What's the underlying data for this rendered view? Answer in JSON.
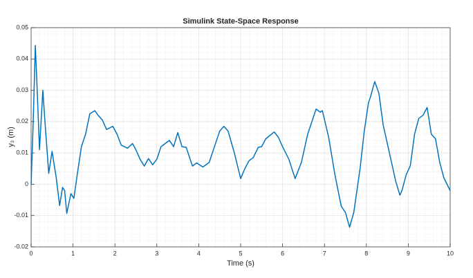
{
  "chart_data": {
    "type": "line",
    "title": "Simulink State-Space Response",
    "xlabel": "Time (s)",
    "ylabel": "y₃ (m)",
    "x": [
      0,
      0.05,
      0.1,
      0.13,
      0.2,
      0.28,
      0.33,
      0.42,
      0.5,
      0.6,
      0.68,
      0.75,
      0.8,
      0.85,
      0.95,
      1.02,
      1.1,
      1.2,
      1.3,
      1.4,
      1.52,
      1.6,
      1.7,
      1.8,
      1.95,
      2.05,
      2.15,
      2.3,
      2.42,
      2.5,
      2.6,
      2.7,
      2.8,
      2.9,
      3.0,
      3.1,
      3.3,
      3.4,
      3.5,
      3.6,
      3.7,
      3.85,
      3.95,
      4.1,
      4.25,
      4.4,
      4.5,
      4.6,
      4.7,
      4.85,
      5.0,
      5.1,
      5.2,
      5.3,
      5.42,
      5.5,
      5.6,
      5.8,
      5.9,
      6.0,
      6.15,
      6.3,
      6.45,
      6.6,
      6.8,
      6.9,
      6.95,
      7.1,
      7.25,
      7.4,
      7.5,
      7.6,
      7.7,
      7.85,
      7.95,
      8.05,
      8.1,
      8.2,
      8.3,
      8.4,
      8.55,
      8.7,
      8.8,
      8.85,
      8.95,
      9.05,
      9.15,
      9.25,
      9.35,
      9.45,
      9.55,
      9.65,
      9.75,
      9.85,
      10
    ],
    "series": [
      {
        "name": "y3",
        "color": "#0072bd",
        "values": [
          0,
          0.02,
          0.0443,
          0.035,
          0.011,
          0.03,
          0.02,
          0.0035,
          0.0105,
          0.002,
          -0.0068,
          -0.001,
          -0.002,
          -0.0093,
          -0.003,
          -0.0045,
          0.003,
          0.012,
          0.016,
          0.0225,
          0.0235,
          0.022,
          0.0205,
          0.0175,
          0.0185,
          0.016,
          0.0125,
          0.0115,
          0.013,
          0.011,
          0.008,
          0.0058,
          0.0082,
          0.0062,
          0.008,
          0.012,
          0.014,
          0.012,
          0.0165,
          0.012,
          0.0118,
          0.0058,
          0.0068,
          0.0055,
          0.007,
          0.013,
          0.017,
          0.0185,
          0.017,
          0.01,
          0.0018,
          0.005,
          0.0075,
          0.0085,
          0.0118,
          0.012,
          0.0145,
          0.0167,
          0.015,
          0.012,
          0.008,
          0.0018,
          0.007,
          0.016,
          0.024,
          0.023,
          0.0235,
          0.015,
          0.003,
          -0.007,
          -0.009,
          -0.0137,
          -0.009,
          0.005,
          0.017,
          0.026,
          0.028,
          0.0328,
          0.029,
          0.019,
          0.01,
          0.001,
          -0.0035,
          -0.002,
          0.003,
          0.006,
          0.016,
          0.021,
          0.022,
          0.0245,
          0.016,
          0.0145,
          0.007,
          0.002,
          -0.002
        ]
      }
    ],
    "xlim": [
      0,
      10
    ],
    "xticks": [
      0,
      1,
      2,
      3,
      4,
      5,
      6,
      7,
      8,
      9,
      10
    ],
    "ylim": [
      -0.02,
      0.05
    ],
    "yticks": [
      -0.02,
      -0.01,
      0,
      0.01,
      0.02,
      0.03,
      0.04,
      0.05
    ],
    "grid": true,
    "minor_grid": true
  }
}
